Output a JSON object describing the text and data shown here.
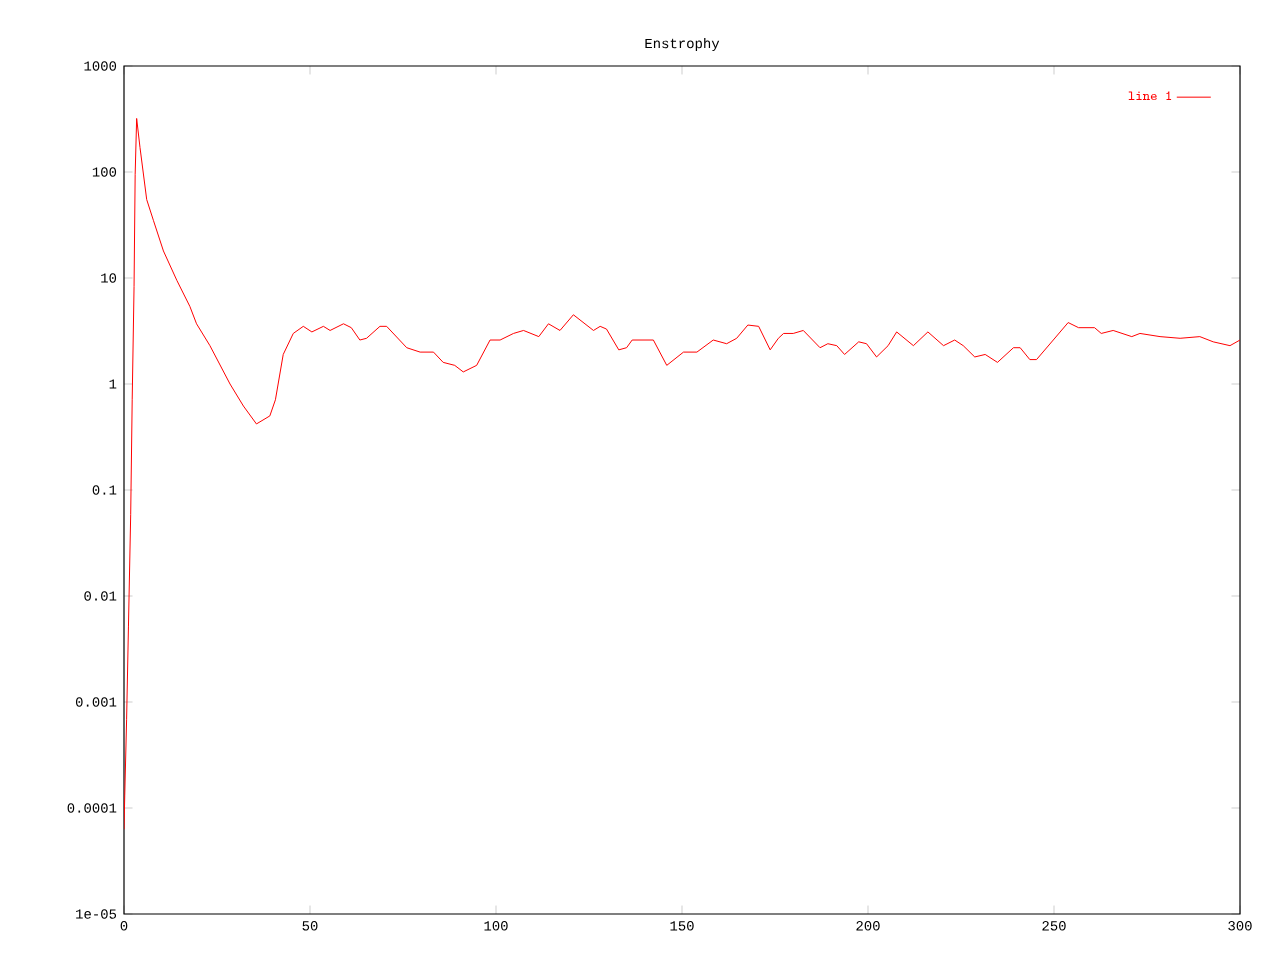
{
  "chart_data": {
    "type": "line",
    "title": "Enstrophy",
    "x": [
      0,
      0.2,
      0.7,
      1.2,
      1.8,
      2.2,
      2.7,
      3.0,
      3.4,
      4.3,
      6.1,
      7.9,
      10.6,
      14.2,
      17.7,
      19.5,
      23.1,
      28.5,
      32.1,
      35.6,
      39.2,
      40.7,
      42.8,
      45.5,
      48.2,
      50.5,
      53.6,
      55.4,
      59,
      61.1,
      63.4,
      65.2,
      68.8,
      70.6,
      76,
      79.6,
      83.2,
      85.8,
      88.9,
      91.2,
      94.8,
      98.4,
      101.1,
      104.7,
      107.4,
      111.5,
      114.1,
      117.2,
      120.8,
      126.2,
      128,
      129.7,
      133,
      135.1,
      136.6,
      142.3,
      145.9,
      150.4,
      154,
      158.4,
      162,
      164.7,
      167.7,
      170.6,
      173.7,
      175.9,
      177.3,
      179.9,
      182.6,
      187.1,
      189.2,
      191.6,
      193.7,
      197.5,
      199.6,
      202.3,
      205.4,
      207.7,
      212.2,
      216.1,
      220.3,
      223.3,
      225.6,
      228.7,
      231.5,
      234.8,
      239.1,
      240.9,
      243.5,
      245.3,
      249.8,
      253.8,
      256.6,
      260.9,
      262.7,
      265.9,
      270.9,
      273.1,
      278.5,
      283.9,
      289.2,
      292.8,
      297.3,
      300
    ],
    "series": [
      {
        "name": "line 1",
        "color": "#ff0000",
        "values": [
          6.3e-05,
          0.00013,
          0.00068,
          0.0052,
          0.059,
          0.71,
          8.3,
          95,
          320,
          170,
          55,
          35,
          18,
          9.5,
          5.4,
          3.7,
          2.3,
          1.0,
          0.62,
          0.42,
          0.5,
          0.71,
          1.9,
          3.0,
          3.5,
          3.1,
          3.5,
          3.2,
          3.7,
          3.4,
          2.6,
          2.7,
          3.5,
          3.5,
          2.2,
          2.0,
          2.0,
          1.6,
          1.5,
          1.3,
          1.5,
          2.6,
          2.6,
          3.0,
          3.2,
          2.8,
          3.7,
          3.2,
          4.5,
          3.2,
          3.5,
          3.3,
          2.1,
          2.2,
          2.6,
          2.6,
          1.5,
          2.0,
          2.0,
          2.6,
          2.4,
          2.7,
          3.6,
          3.5,
          2.1,
          2.7,
          3.0,
          3.0,
          3.2,
          2.2,
          2.4,
          2.3,
          1.9,
          2.5,
          2.4,
          1.8,
          2.3,
          3.1,
          2.3,
          3.1,
          2.3,
          2.6,
          2.3,
          1.8,
          1.9,
          1.6,
          2.2,
          2.2,
          1.7,
          1.7,
          2.6,
          3.8,
          3.4,
          3.4,
          3.0,
          3.2,
          2.8,
          3.0,
          2.8,
          2.7,
          2.8,
          2.5,
          2.3,
          2.6
        ]
      }
    ],
    "xlim": [
      0,
      300
    ],
    "ylim": [
      1e-05,
      1000
    ],
    "xticks": [
      0,
      50,
      100,
      150,
      200,
      250,
      300
    ],
    "yticks": [
      {
        "value": 1e-05,
        "label": "1e-05"
      },
      {
        "value": 0.0001,
        "label": "0.0001"
      },
      {
        "value": 0.001,
        "label": "0.001"
      },
      {
        "value": 0.01,
        "label": "0.01"
      },
      {
        "value": 0.1,
        "label": "0.1"
      },
      {
        "value": 1,
        "label": "1"
      },
      {
        "value": 10,
        "label": "10"
      },
      {
        "value": 100,
        "label": "100"
      },
      {
        "value": 1000,
        "label": "1000"
      }
    ],
    "log": true,
    "grid": false,
    "legend": "top right",
    "marker": "none",
    "line_style": "solid"
  }
}
